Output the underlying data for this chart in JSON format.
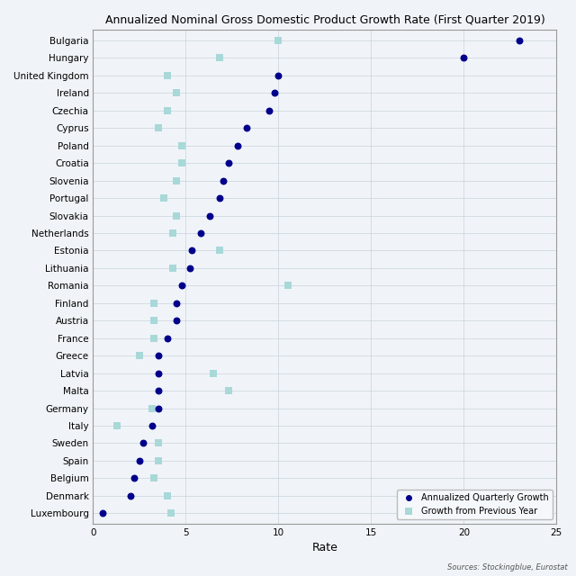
{
  "title": "Annualized Nominal Gross Domestic Product Growth Rate (First Quarter 2019)",
  "xlabel": "Rate",
  "source_text": "Sources: Stockingblue, Eurostat",
  "countries": [
    "Bulgaria",
    "Hungary",
    "United Kingdom",
    "Ireland",
    "Czechia",
    "Cyprus",
    "Poland",
    "Croatia",
    "Slovenia",
    "Portugal",
    "Slovakia",
    "Netherlands",
    "Estonia",
    "Lithuania",
    "Romania",
    "Finland",
    "Austria",
    "France",
    "Greece",
    "Latvia",
    "Malta",
    "Germany",
    "Italy",
    "Sweden",
    "Spain",
    "Belgium",
    "Denmark",
    "Luxembourg"
  ],
  "annualized_quarterly": [
    23.0,
    20.0,
    10.0,
    9.8,
    9.5,
    8.3,
    7.8,
    7.3,
    7.0,
    6.8,
    6.3,
    5.8,
    5.3,
    5.2,
    4.8,
    4.5,
    4.5,
    4.0,
    3.5,
    3.5,
    3.5,
    3.5,
    3.2,
    2.7,
    2.5,
    2.2,
    2.0,
    0.5
  ],
  "previous_year": [
    10.0,
    6.8,
    4.0,
    4.5,
    4.0,
    3.5,
    4.8,
    4.8,
    4.5,
    3.8,
    4.5,
    4.3,
    6.8,
    4.3,
    10.5,
    3.3,
    3.3,
    3.3,
    2.5,
    6.5,
    7.3,
    3.2,
    1.3,
    3.5,
    3.5,
    3.3,
    4.0,
    4.2
  ],
  "dot_color": "#00008B",
  "square_color": "#A8D8D8",
  "bg_color": "#f0f4f8",
  "grid_color": "#c8d4dc",
  "xlim": [
    0,
    25
  ],
  "xticks": [
    0,
    5,
    10,
    15,
    20,
    25
  ],
  "title_fontsize": 9,
  "tick_fontsize": 7.5,
  "xlabel_fontsize": 9
}
